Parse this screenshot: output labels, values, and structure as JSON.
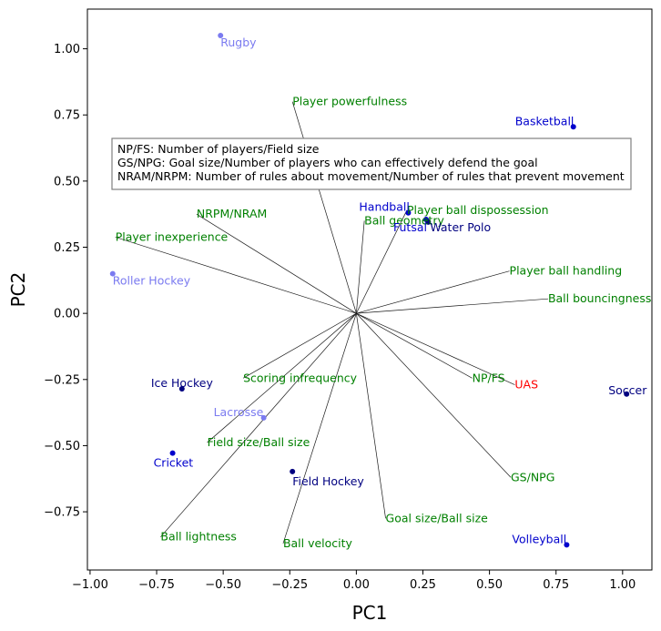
{
  "chart_data": {
    "type": "scatter",
    "subtype": "pca-biplot",
    "title": "",
    "xlabel": "PC1",
    "ylabel": "PC2",
    "xlim": [
      -1.01,
      1.11
    ],
    "ylim": [
      -0.97,
      1.15
    ],
    "xticks": [
      -1.0,
      -0.75,
      -0.5,
      -0.25,
      0.0,
      0.25,
      0.5,
      0.75,
      1.0
    ],
    "yticks": [
      -0.75,
      -0.5,
      -0.25,
      0.0,
      0.25,
      0.5,
      0.75,
      1.0
    ],
    "xtick_labels": [
      "−1.00",
      "−0.75",
      "−0.50",
      "−0.25",
      "0.00",
      "0.25",
      "0.50",
      "0.75",
      "1.00"
    ],
    "ytick_labels": [
      "−0.75",
      "−0.50",
      "−0.25",
      "0.00",
      "0.25",
      "0.50",
      "0.75",
      "1.00"
    ],
    "grid": false,
    "legend_box": {
      "position": "upper-left",
      "lines": [
        "NP/FS: Number of players/Field size",
        "GS/NPG: Goal size/Number of players who can effectively defend the goal",
        "NRAM/NRPM: Number of rules about movement/Number of rules that prevent movement"
      ]
    },
    "sports": [
      {
        "name": "Rugby",
        "x": -0.51,
        "y": 1.05,
        "color": "#7b7bf0"
      },
      {
        "name": "Basketball",
        "x": 0.815,
        "y": 0.705,
        "color": "#0000cc"
      },
      {
        "name": "Handball",
        "x": 0.195,
        "y": 0.38,
        "color": "#0000cc"
      },
      {
        "name": "Futsal",
        "x": 0.262,
        "y": 0.355,
        "color": "#0000cc"
      },
      {
        "name": "Water Polo",
        "x": 0.27,
        "y": 0.345,
        "color": "#000080"
      },
      {
        "name": "Roller Hockey",
        "x": -0.915,
        "y": 0.15,
        "color": "#7b7bf0"
      },
      {
        "name": "Ice Hockey",
        "x": -0.655,
        "y": -0.285,
        "color": "#000080"
      },
      {
        "name": "Soccer",
        "x": 1.015,
        "y": -0.305,
        "color": "#000080"
      },
      {
        "name": "Lacrosse",
        "x": -0.348,
        "y": -0.395,
        "color": "#7b7bf0"
      },
      {
        "name": "Cricket",
        "x": -0.69,
        "y": -0.528,
        "color": "#0000cc"
      },
      {
        "name": "Field Hockey",
        "x": -0.24,
        "y": -0.598,
        "color": "#000080"
      },
      {
        "name": "Volleyball",
        "x": 0.79,
        "y": -0.875,
        "color": "#0000cc"
      }
    ],
    "loadings": [
      {
        "name": "Player powerfulness",
        "x": -0.24,
        "y": 0.8,
        "color": "#008000"
      },
      {
        "name": "NRPM/NRAM",
        "x": -0.6,
        "y": 0.375,
        "color": "#008000"
      },
      {
        "name": "Ball geometry",
        "x": 0.03,
        "y": 0.35,
        "color": "#008000"
      },
      {
        "name": "Player ball dispossession",
        "x": 0.19,
        "y": 0.39,
        "color": "#008000"
      },
      {
        "name": "Player inexperience",
        "x": -0.905,
        "y": 0.288,
        "color": "#008000"
      },
      {
        "name": "Player ball handling",
        "x": 0.575,
        "y": 0.16,
        "color": "#008000"
      },
      {
        "name": "Ball bouncingness",
        "x": 0.72,
        "y": 0.055,
        "color": "#008000"
      },
      {
        "name": "NP/FS",
        "x": 0.435,
        "y": -0.245,
        "color": "#008000"
      },
      {
        "name": "UAS",
        "x": 0.595,
        "y": -0.27,
        "color": "#ff0000"
      },
      {
        "name": "Scoring infrequency",
        "x": -0.425,
        "y": -0.245,
        "color": "#008000"
      },
      {
        "name": "Field size/Ball size",
        "x": -0.56,
        "y": -0.488,
        "color": "#008000"
      },
      {
        "name": "GS/NPG",
        "x": 0.58,
        "y": -0.62,
        "color": "#008000"
      },
      {
        "name": "Goal size/Ball size",
        "x": 0.11,
        "y": -0.775,
        "color": "#008000"
      },
      {
        "name": "Ball lightness",
        "x": -0.735,
        "y": -0.845,
        "color": "#008000"
      },
      {
        "name": "Ball velocity",
        "x": -0.275,
        "y": -0.87,
        "color": "#008000"
      }
    ]
  }
}
